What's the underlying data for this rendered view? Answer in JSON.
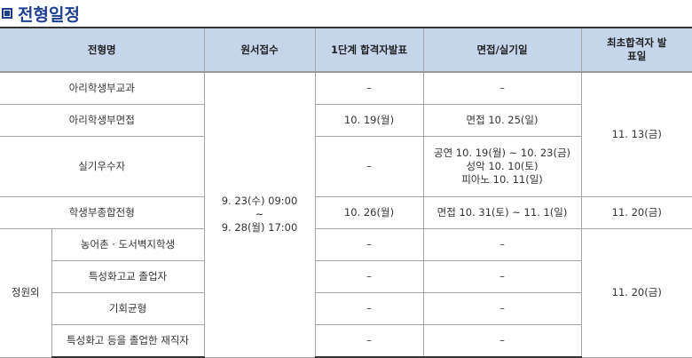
{
  "title": "전형일정",
  "colors": {
    "title": "#1d3f92",
    "header_bg": "#c6d5ea"
  },
  "headers": [
    "전형명",
    "원서접수",
    "1단계 합격자발표",
    "면접/실기일",
    "최초합격자 발표일"
  ],
  "application_period": [
    "9. 23(수) 09:00",
    "~",
    "9. 28(월) 17:00"
  ],
  "rows": [
    {
      "name": "아리학생부교과",
      "stage1": "–",
      "interview": [
        "–"
      ]
    },
    {
      "name": "아리학생부면접",
      "stage1": "10. 19(월)",
      "interview": [
        "면접 10. 25(일)"
      ]
    },
    {
      "name": "실기우수자",
      "stage1": "–",
      "interview": [
        "공연 10. 19(월) ~ 10. 23(금)",
        "성악 10. 10(토)",
        "피아노 10. 11(일)"
      ]
    },
    {
      "name": "학생부종합전형",
      "stage1": "10. 26(월)",
      "interview": [
        "면접 10. 31(토) ~ 11. 1(일)"
      ]
    }
  ],
  "first_results": [
    "11. 13(금)",
    "11. 20(금)",
    "11. 20(금)"
  ],
  "extra_group": {
    "label": "정원외",
    "rows": [
      {
        "name": "농어촌 · 도서벽지학생",
        "stage1": "–",
        "interview": "–"
      },
      {
        "name": "특성화고교 졸업자",
        "stage1": "–",
        "interview": "–"
      },
      {
        "name": "기회균형",
        "stage1": "–",
        "interview": "–"
      },
      {
        "name": "특성화고 등을 졸업한 재직자",
        "stage1": "–",
        "interview": "–"
      }
    ]
  }
}
